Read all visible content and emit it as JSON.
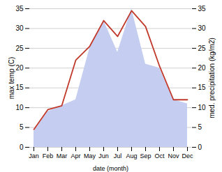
{
  "chart_data": {
    "type": "line",
    "categories": [
      "Jan",
      "Feb",
      "Mar",
      "Apr",
      "May",
      "Jun",
      "Jul",
      "Aug",
      "Sep",
      "Oct",
      "Nov",
      "Dec"
    ],
    "series": [
      {
        "type": "area",
        "color": "#c5cef0",
        "axis": "y2",
        "values": [
          4.0,
          9.0,
          10.5,
          12.0,
          25.0,
          32.0,
          24.0,
          35.0,
          21.0,
          20.0,
          12.0,
          11.0
        ]
      },
      {
        "type": "line",
        "color": "#c0392b",
        "values": [
          4.5,
          9.5,
          10.5,
          22.0,
          25.5,
          32.0,
          28.0,
          34.5,
          30.5,
          20.5,
          12.0,
          12.0
        ]
      }
    ],
    "xlabel": "date (month)",
    "ylabel": "max temp (C)",
    "y2label": "med. precipitation (kg/m2)",
    "ylim": [
      0,
      35
    ],
    "yticks": [
      0,
      5,
      10,
      15,
      20,
      25,
      30,
      35
    ],
    "y2lim": [
      0,
      35
    ],
    "y2ticks": [
      0,
      5,
      10,
      15,
      20,
      25,
      30,
      35
    ],
    "grid": true
  }
}
